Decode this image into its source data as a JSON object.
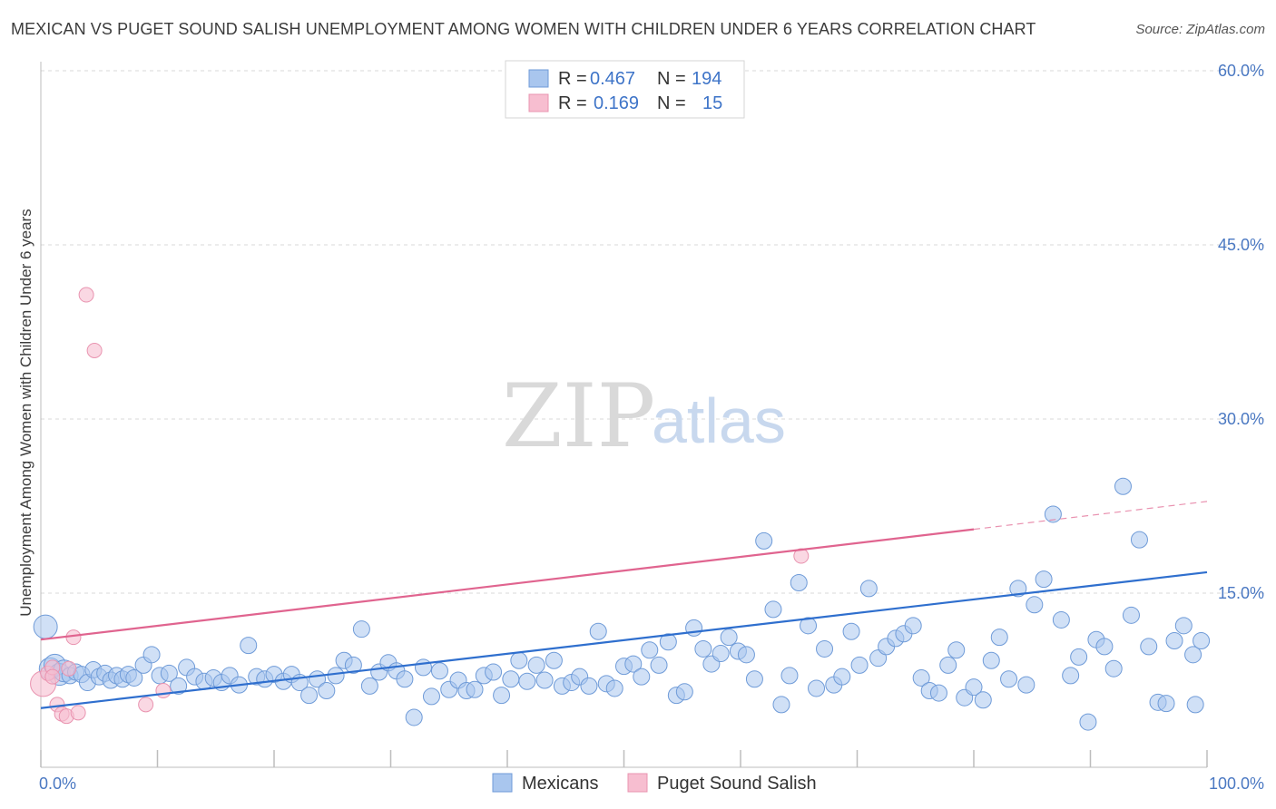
{
  "header": {
    "title": "MEXICAN VS PUGET SOUND SALISH UNEMPLOYMENT AMONG WOMEN WITH CHILDREN UNDER 6 YEARS CORRELATION CHART",
    "source": "Source: ZipAtlas.com"
  },
  "watermark": {
    "zip": "ZIP",
    "atlas": "atlas"
  },
  "legend": {
    "rows": [
      {
        "r_label": "R =",
        "r_value": "0.467",
        "n_label": "N =",
        "n_value": "194"
      },
      {
        "r_label": "R =",
        "r_value": "0.169",
        "n_label": "N =",
        "n_value": "15"
      }
    ]
  },
  "bottom_legend": {
    "items": [
      "Mexicans",
      "Puget Sound Salish"
    ]
  },
  "colors": {
    "mexicans_fill": "#a9c6ee",
    "mexicans_stroke": "#6f9bd8",
    "mexicans_line": "#2f6fce",
    "salish_fill": "#f7bed0",
    "salish_stroke": "#e994b0",
    "salish_line": "#e0648f",
    "tick_label": "#4a78c2",
    "grid": "#d8d8d8"
  },
  "chart_data": {
    "type": "scatter",
    "title": "MEXICAN VS PUGET SOUND SALISH UNEMPLOYMENT AMONG WOMEN WITH CHILDREN UNDER 6 YEARS CORRELATION CHART",
    "xlabel": "",
    "ylabel": "Unemployment Among Women with Children Under 6 years",
    "xlim": [
      0,
      100
    ],
    "ylim": [
      0,
      60
    ],
    "x_tick_labels": [
      "0.0%",
      "100.0%"
    ],
    "y_ticks": [
      15,
      30,
      45,
      60
    ],
    "y_tick_labels": [
      "15.0%",
      "30.0%",
      "45.0%",
      "60.0%"
    ],
    "grid": true,
    "legend_position": "top-center",
    "series": [
      {
        "name": "Mexicans",
        "r": 0.467,
        "n": 194,
        "trend": {
          "x": [
            0,
            100
          ],
          "y": [
            5.1,
            16.8
          ]
        },
        "points": [
          [
            0.4,
            12.1
          ],
          [
            0.8,
            8.5
          ],
          [
            1.2,
            8.8
          ],
          [
            1.6,
            8.0
          ],
          [
            2.0,
            8.3
          ],
          [
            2.5,
            7.9
          ],
          [
            3.0,
            8.2
          ],
          [
            3.5,
            8.0
          ],
          [
            4.0,
            7.3
          ],
          [
            4.5,
            8.4
          ],
          [
            5.0,
            7.8
          ],
          [
            5.5,
            8.1
          ],
          [
            6.0,
            7.5
          ],
          [
            6.5,
            7.9
          ],
          [
            7.0,
            7.6
          ],
          [
            7.5,
            8.0
          ],
          [
            8.0,
            7.7
          ],
          [
            8.8,
            8.8
          ],
          [
            9.5,
            9.7
          ],
          [
            10.2,
            7.9
          ],
          [
            11.0,
            8.1
          ],
          [
            11.8,
            7.0
          ],
          [
            12.5,
            8.6
          ],
          [
            13.2,
            7.8
          ],
          [
            14.0,
            7.4
          ],
          [
            14.8,
            7.7
          ],
          [
            15.5,
            7.3
          ],
          [
            16.2,
            7.9
          ],
          [
            17.0,
            7.1
          ],
          [
            17.8,
            10.5
          ],
          [
            18.5,
            7.8
          ],
          [
            19.2,
            7.6
          ],
          [
            20.0,
            8.0
          ],
          [
            20.8,
            7.4
          ],
          [
            21.5,
            8.0
          ],
          [
            22.2,
            7.3
          ],
          [
            23.0,
            6.2
          ],
          [
            23.7,
            7.6
          ],
          [
            24.5,
            6.6
          ],
          [
            25.3,
            7.9
          ],
          [
            26.0,
            9.2
          ],
          [
            26.8,
            8.8
          ],
          [
            27.5,
            11.9
          ],
          [
            28.2,
            7.0
          ],
          [
            29.0,
            8.2
          ],
          [
            29.8,
            9.0
          ],
          [
            30.5,
            8.3
          ],
          [
            31.2,
            7.6
          ],
          [
            32.0,
            4.3
          ],
          [
            32.8,
            8.6
          ],
          [
            33.5,
            6.1
          ],
          [
            34.2,
            8.3
          ],
          [
            35.0,
            6.7
          ],
          [
            35.8,
            7.5
          ],
          [
            36.5,
            6.6
          ],
          [
            37.2,
            6.7
          ],
          [
            38.0,
            7.9
          ],
          [
            38.8,
            8.2
          ],
          [
            39.5,
            6.2
          ],
          [
            40.3,
            7.6
          ],
          [
            41.0,
            9.2
          ],
          [
            41.7,
            7.4
          ],
          [
            42.5,
            8.8
          ],
          [
            43.2,
            7.5
          ],
          [
            44.0,
            9.2
          ],
          [
            44.7,
            7.0
          ],
          [
            45.5,
            7.3
          ],
          [
            46.2,
            7.8
          ],
          [
            47.0,
            7.0
          ],
          [
            47.8,
            11.7
          ],
          [
            48.5,
            7.2
          ],
          [
            49.2,
            6.8
          ],
          [
            50.0,
            8.7
          ],
          [
            50.8,
            8.9
          ],
          [
            51.5,
            7.8
          ],
          [
            52.2,
            10.1
          ],
          [
            53.0,
            8.8
          ],
          [
            53.8,
            10.8
          ],
          [
            54.5,
            6.2
          ],
          [
            55.2,
            6.5
          ],
          [
            56.0,
            12.0
          ],
          [
            56.8,
            10.2
          ],
          [
            57.5,
            8.9
          ],
          [
            58.3,
            9.8
          ],
          [
            59.0,
            11.2
          ],
          [
            59.8,
            10.0
          ],
          [
            60.5,
            9.7
          ],
          [
            61.2,
            7.6
          ],
          [
            62.0,
            19.5
          ],
          [
            62.8,
            13.6
          ],
          [
            63.5,
            5.4
          ],
          [
            64.2,
            7.9
          ],
          [
            65.0,
            15.9
          ],
          [
            65.8,
            12.2
          ],
          [
            66.5,
            6.8
          ],
          [
            67.2,
            10.2
          ],
          [
            68.0,
            7.1
          ],
          [
            68.7,
            7.8
          ],
          [
            69.5,
            11.7
          ],
          [
            70.2,
            8.8
          ],
          [
            71.0,
            15.4
          ],
          [
            71.8,
            9.4
          ],
          [
            72.5,
            10.4
          ],
          [
            73.3,
            11.1
          ],
          [
            74.0,
            11.5
          ],
          [
            74.8,
            12.2
          ],
          [
            75.5,
            7.7
          ],
          [
            76.2,
            6.6
          ],
          [
            77.0,
            6.4
          ],
          [
            77.8,
            8.8
          ],
          [
            78.5,
            10.1
          ],
          [
            79.2,
            6.0
          ],
          [
            80.0,
            6.9
          ],
          [
            80.8,
            5.8
          ],
          [
            81.5,
            9.2
          ],
          [
            82.2,
            11.2
          ],
          [
            83.0,
            7.6
          ],
          [
            83.8,
            15.4
          ],
          [
            84.5,
            7.1
          ],
          [
            85.2,
            14.0
          ],
          [
            86.0,
            16.2
          ],
          [
            86.8,
            21.8
          ],
          [
            87.5,
            12.7
          ],
          [
            88.3,
            7.9
          ],
          [
            89.0,
            9.5
          ],
          [
            89.8,
            3.9
          ],
          [
            90.5,
            11.0
          ],
          [
            91.2,
            10.4
          ],
          [
            92.0,
            8.5
          ],
          [
            92.8,
            24.2
          ],
          [
            93.5,
            13.1
          ],
          [
            94.2,
            19.6
          ],
          [
            95.0,
            10.4
          ],
          [
            95.8,
            5.6
          ],
          [
            96.5,
            5.5
          ],
          [
            97.2,
            10.9
          ],
          [
            98.0,
            12.2
          ],
          [
            98.8,
            9.7
          ],
          [
            99.0,
            5.4
          ],
          [
            99.5,
            10.9
          ]
        ]
      },
      {
        "name": "Puget Sound Salish",
        "r": 0.169,
        "n": 15,
        "trend": {
          "x": [
            0,
            80,
            100
          ],
          "y": [
            11.0,
            20.5,
            22.9
          ]
        },
        "points": [
          [
            0.2,
            7.2
          ],
          [
            0.6,
            8.1
          ],
          [
            1.0,
            8.6
          ],
          [
            1.4,
            5.4
          ],
          [
            1.8,
            4.6
          ],
          [
            2.2,
            4.4
          ],
          [
            2.8,
            11.2
          ],
          [
            3.2,
            4.7
          ],
          [
            3.9,
            40.7
          ],
          [
            4.6,
            35.9
          ],
          [
            9.0,
            5.4
          ],
          [
            10.5,
            6.6
          ],
          [
            65.2,
            18.2
          ],
          [
            1.0,
            7.8
          ],
          [
            2.4,
            8.5
          ]
        ]
      }
    ]
  }
}
